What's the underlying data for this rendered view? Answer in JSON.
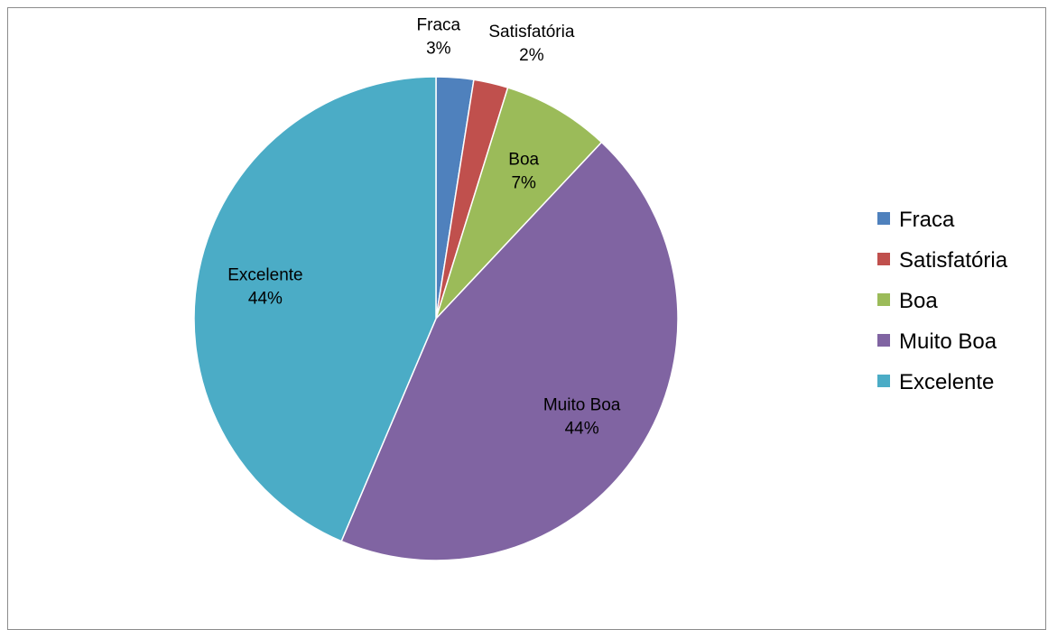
{
  "chart_data": {
    "type": "pie",
    "title": "",
    "legend_position": "right",
    "slices": [
      {
        "name": "Fraca",
        "label_pct": "3%",
        "value": 2.5,
        "color": "#4F81BD"
      },
      {
        "name": "Satisfatória",
        "label_pct": "2%",
        "value": 2.3,
        "color": "#C0504D"
      },
      {
        "name": "Boa",
        "label_pct": "7%",
        "value": 7.2,
        "color": "#9BBB59"
      },
      {
        "name": "Muito Boa",
        "label_pct": "44%",
        "value": 44.4,
        "color": "#8064A2"
      },
      {
        "name": "Excelente",
        "label_pct": "44%",
        "value": 43.6,
        "color": "#4BACC6"
      }
    ]
  }
}
